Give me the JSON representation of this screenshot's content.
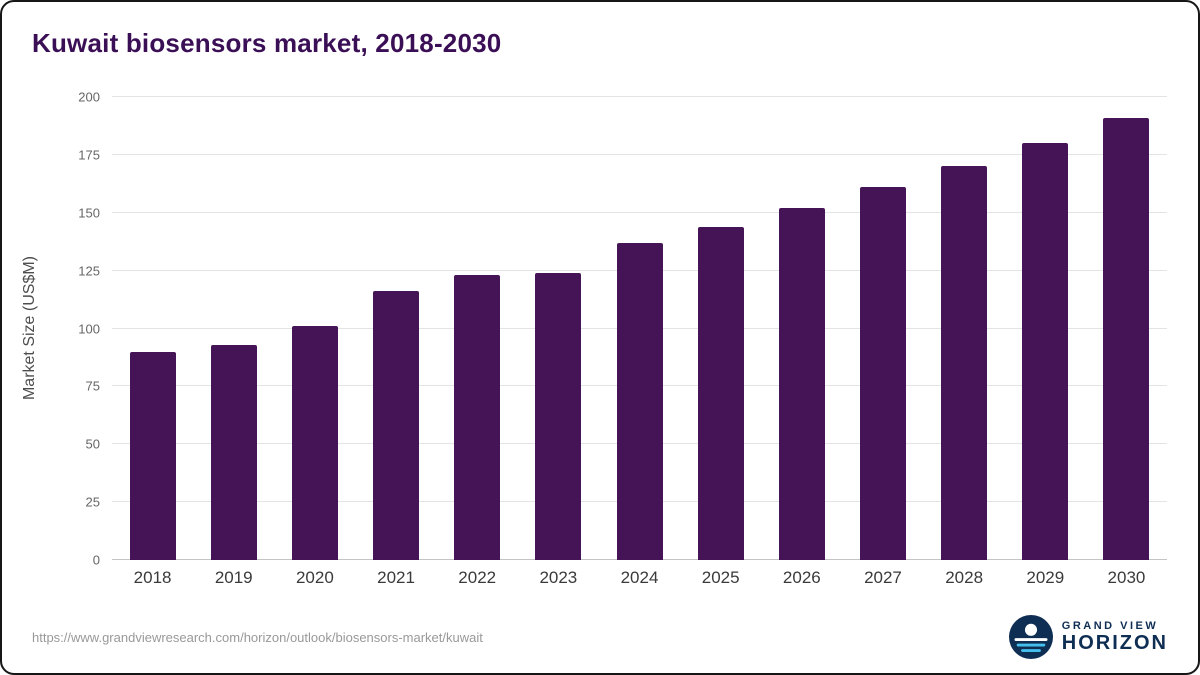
{
  "title": "Kuwait biosensors market, 2018-2030",
  "source_url": "https://www.grandviewresearch.com/horizon/outlook/biosensors-market/kuwait",
  "logo": {
    "line1": "GRAND VIEW",
    "line2": "HORIZON"
  },
  "colors": {
    "bar": "#451457",
    "title": "#3b0f56",
    "gridline": "#e4e4e4",
    "logo_navy": "#0f2e54",
    "logo_blue": "#45c0ec"
  },
  "chart_data": {
    "type": "bar",
    "title": "Kuwait biosensors market, 2018-2030",
    "categories": [
      "2018",
      "2019",
      "2020",
      "2021",
      "2022",
      "2023",
      "2024",
      "2025",
      "2026",
      "2027",
      "2028",
      "2029",
      "2030"
    ],
    "values": [
      90,
      93,
      101,
      116,
      123,
      124,
      137,
      144,
      152,
      161,
      170,
      180,
      191
    ],
    "xlabel": "",
    "ylabel": "Market Size (US$M)",
    "ylim": [
      0,
      200
    ],
    "yticks": [
      0,
      25,
      50,
      75,
      100,
      125,
      150,
      175,
      200
    ],
    "grid": "horizontal",
    "legend": "none"
  }
}
